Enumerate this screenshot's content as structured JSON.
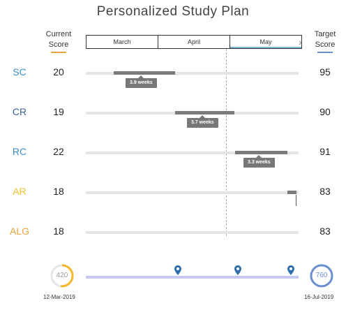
{
  "title": "Personalized Study Plan",
  "headers": {
    "current": [
      "Current",
      "Score"
    ],
    "target": [
      "Target",
      "Score"
    ]
  },
  "months": [
    "March",
    "April",
    "May"
  ],
  "rows": [
    {
      "subject": "SC",
      "color": "#3a8fce",
      "current": "20",
      "target": "95",
      "duration": "3.9 weeks"
    },
    {
      "subject": "CR",
      "color": "#3a5f8f",
      "current": "19",
      "target": "90",
      "duration": "3.7 weeks"
    },
    {
      "subject": "RC",
      "color": "#3a8fce",
      "current": "22",
      "target": "91",
      "duration": "3.3 weeks"
    },
    {
      "subject": "AR",
      "color": "#f2c12e",
      "current": "18",
      "target": "83",
      "duration": ""
    },
    {
      "subject": "ALG",
      "color": "#e8a33d",
      "current": "18",
      "target": "83",
      "duration": ""
    }
  ],
  "footer": {
    "start_score": "420",
    "end_score": "760",
    "start_date": "12-Mar-2019",
    "end_date": "16-Jul-2019",
    "start_ring_color": "#f5b829",
    "end_ring_color": "#6a8fce"
  },
  "icons": {
    "pin": "map-pin-icon",
    "arrow": "chevron-right-icon"
  }
}
